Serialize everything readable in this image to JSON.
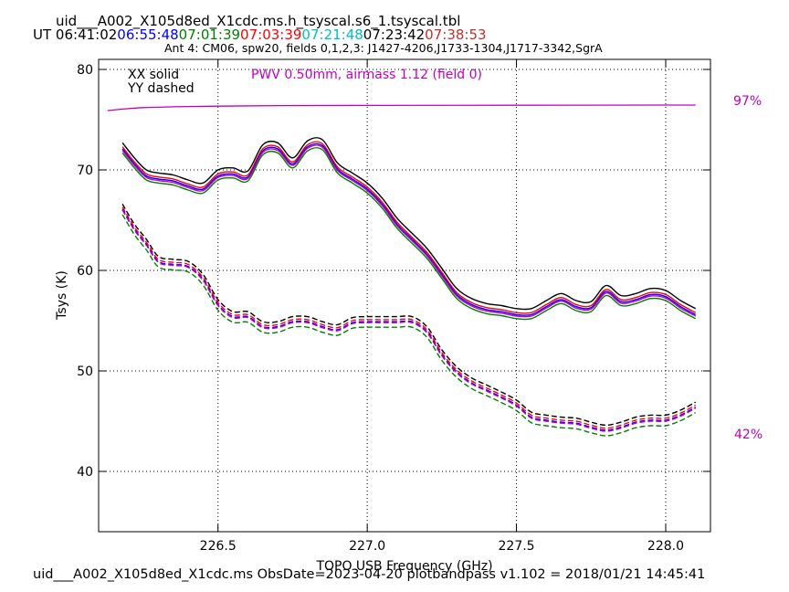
{
  "header": {
    "title": "uid___A002_X105d8ed_X1cdc.ms.h_tsyscal.s6_1.tsyscal.tbl",
    "ut_prefix": "UT ",
    "times": [
      {
        "text": "06:41:02",
        "color": "#000000"
      },
      {
        "text": "06:55:48",
        "color": "#0000ff"
      },
      {
        "text": "07:01:39",
        "color": "#008000"
      },
      {
        "text": "07:03:39",
        "color": "#ff0000"
      },
      {
        "text": "07:21:48",
        "color": "#00bfbf"
      },
      {
        "text": "07:23:42",
        "color": "#000000"
      },
      {
        "text": "07:38:53",
        "color": "#c03030"
      }
    ],
    "subtitle": "Ant 4: CM06,  spw20,  fields 0,1,2,3: J1427-4206,J1733-1304,J1717-3342,SgrA"
  },
  "footer": "uid___A002_X105d8ed_X1cdc.ms  ObsDate=2023-04-20   plotbandpass v1.102 = 2018/01/21 14:45:41",
  "chart_data": {
    "type": "line",
    "xlabel": "TOPO USB Frequency (GHz)",
    "ylabel": "Tsys (K)",
    "xlim": [
      226.1,
      228.15
    ],
    "ylim": [
      34,
      81
    ],
    "xticks": [
      226.5,
      227.0,
      227.5,
      228.0
    ],
    "xtick_labels": [
      "226.5",
      "227.0",
      "227.5",
      "228.0"
    ],
    "yticks": [
      40,
      50,
      60,
      70,
      80
    ],
    "ytick_labels": [
      "40",
      "50",
      "60",
      "70",
      "80"
    ],
    "grid": true,
    "annotations": {
      "xx_label": "XX solid",
      "yy_label": "YY dashed",
      "pwv": "PWV 0.50mm, airmass 1.12 (field 0)",
      "pwv_color": "#c000c0",
      "trans_high": "97%",
      "trans_low": "42%"
    },
    "xx_base": {
      "x": [
        226.18,
        226.22,
        226.26,
        226.3,
        226.35,
        226.4,
        226.45,
        226.5,
        226.55,
        226.6,
        226.65,
        226.7,
        226.75,
        226.8,
        226.85,
        226.9,
        226.95,
        227.0,
        227.05,
        227.1,
        227.15,
        227.2,
        227.25,
        227.3,
        227.35,
        227.4,
        227.45,
        227.5,
        227.55,
        227.6,
        227.65,
        227.7,
        227.75,
        227.8,
        227.85,
        227.9,
        227.95,
        228.0,
        228.05,
        228.1
      ],
      "y": [
        72.0,
        70.5,
        69.3,
        69.0,
        68.8,
        68.3,
        68.0,
        69.3,
        69.5,
        69.2,
        71.8,
        72.0,
        70.5,
        72.2,
        72.3,
        70.0,
        69.0,
        68.0,
        66.5,
        64.5,
        63.0,
        61.5,
        59.5,
        57.5,
        56.5,
        56.0,
        55.8,
        55.5,
        55.5,
        56.3,
        57.0,
        56.3,
        56.2,
        57.8,
        56.8,
        57.0,
        57.5,
        57.3,
        56.3,
        55.5
      ]
    },
    "yy_base": {
      "x": [
        226.18,
        226.22,
        226.26,
        226.3,
        226.35,
        226.4,
        226.45,
        226.5,
        226.55,
        226.6,
        226.65,
        226.7,
        226.75,
        226.8,
        226.85,
        226.9,
        226.95,
        227.0,
        227.05,
        227.1,
        227.15,
        227.2,
        227.25,
        227.3,
        227.35,
        227.4,
        227.45,
        227.5,
        227.55,
        227.6,
        227.65,
        227.7,
        227.75,
        227.8,
        227.85,
        227.9,
        227.95,
        228.0,
        228.05,
        228.1
      ],
      "y": [
        66.0,
        64.0,
        62.5,
        60.8,
        60.5,
        60.3,
        59.0,
        56.5,
        55.3,
        55.3,
        54.3,
        54.3,
        54.8,
        54.8,
        54.3,
        54.0,
        54.7,
        54.8,
        54.8,
        54.8,
        54.8,
        53.8,
        51.5,
        49.8,
        48.7,
        48.0,
        47.3,
        46.5,
        45.3,
        45.0,
        44.8,
        44.7,
        44.3,
        44.0,
        44.3,
        44.8,
        45.0,
        45.0,
        45.5,
        46.3
      ]
    },
    "series": [
      {
        "kind": "xx",
        "color": "#000000",
        "offset": 0.7
      },
      {
        "kind": "xx",
        "color": "#ff0000",
        "offset": 0.3
      },
      {
        "kind": "xx",
        "color": "#0000ff",
        "offset": 0.1
      },
      {
        "kind": "xx",
        "color": "#c000c0",
        "offset": -0.05
      },
      {
        "kind": "xx",
        "color": "#008000",
        "offset": -0.3
      },
      {
        "kind": "yy",
        "color": "#000000",
        "offset": 0.6
      },
      {
        "kind": "yy",
        "color": "#ff0000",
        "offset": 0.3
      },
      {
        "kind": "yy",
        "color": "#0000ff",
        "offset": 0.1
      },
      {
        "kind": "yy",
        "color": "#c000c0",
        "offset": 0.0
      },
      {
        "kind": "yy",
        "color": "#008000",
        "offset": -0.45
      }
    ],
    "transmission": {
      "color": "#c000c0",
      "x": [
        226.13,
        226.18,
        226.25,
        226.35,
        226.5,
        226.7,
        227.0,
        227.5,
        228.0,
        228.1
      ],
      "y": [
        75.9,
        76.05,
        76.2,
        76.28,
        76.35,
        76.4,
        76.42,
        76.44,
        76.45,
        76.45
      ]
    }
  }
}
